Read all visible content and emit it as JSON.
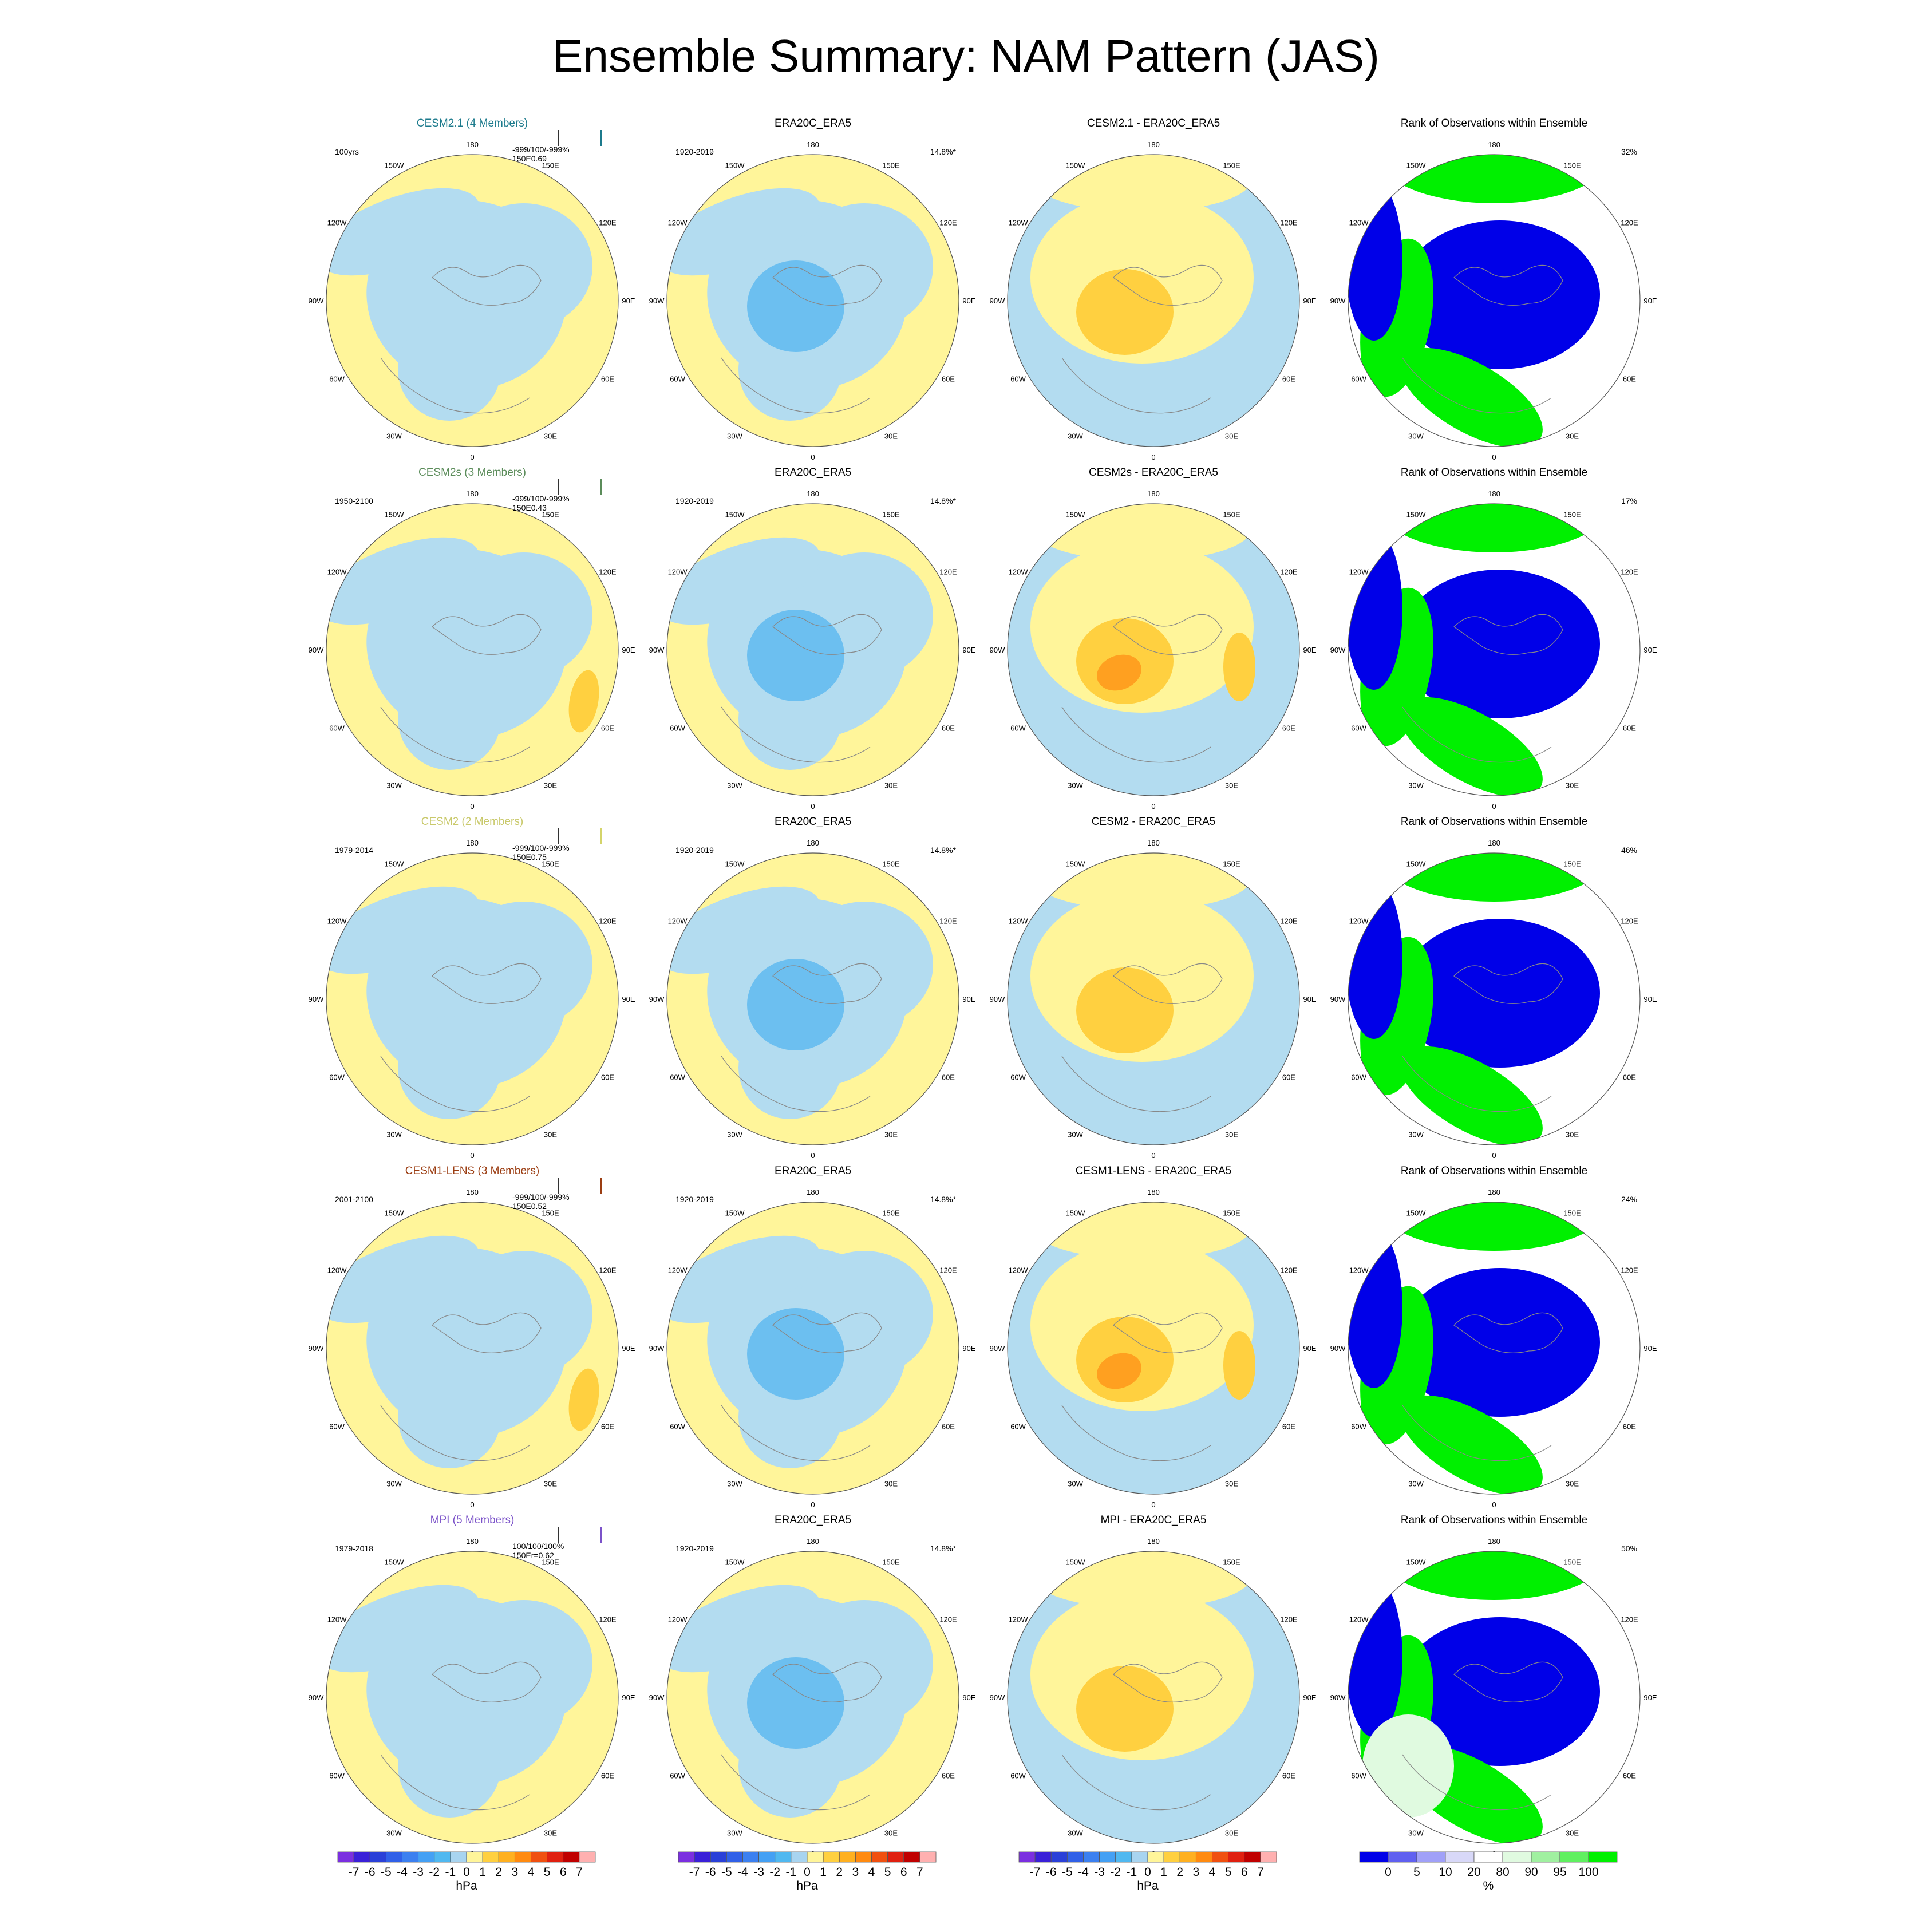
{
  "title": "Ensemble Summary: NAM Pattern (JAS)",
  "longitude_labels": [
    "180",
    "150E",
    "120E",
    "90E",
    "60E",
    "30E",
    "0",
    "30W",
    "60W",
    "90W",
    "120W",
    "150W"
  ],
  "rows": [
    {
      "model": {
        "title": "CESM2.1 (4 Members)",
        "title_color": "#1c7a8c",
        "period": "100yrs",
        "stats_line1": "-999/100/-999%",
        "stats_line2": "150E0.69",
        "marker_color": "#1c7a8c"
      },
      "obs": {
        "title": "ERA20C_ERA5",
        "period": "1920-2019",
        "variance": "14.8%*"
      },
      "diff": {
        "title": "CESM2.1 - ERA20C_ERA5"
      },
      "rank": {
        "title": "Rank of Observations within Ensemble",
        "percent": "32%"
      }
    },
    {
      "model": {
        "title": "CESM2s (3 Members)",
        "title_color": "#5b8c5a",
        "period": "1950-2100",
        "stats_line1": "-999/100/-999%",
        "stats_line2": "150E0.43",
        "marker_color": "#5b8c5a"
      },
      "obs": {
        "title": "ERA20C_ERA5",
        "period": "1920-2019",
        "variance": "14.8%*"
      },
      "diff": {
        "title": "CESM2s - ERA20C_ERA5"
      },
      "rank": {
        "title": "Rank of Observations within Ensemble",
        "percent": "17%"
      }
    },
    {
      "model": {
        "title": "CESM2 (2 Members)",
        "title_color": "#c9c96b",
        "period": "1979-2014",
        "stats_line1": "-999/100/-999%",
        "stats_line2": "150E0.75",
        "marker_color": "#d4d46a"
      },
      "obs": {
        "title": "ERA20C_ERA5",
        "period": "1920-2019",
        "variance": "14.8%*"
      },
      "diff": {
        "title": "CESM2 - ERA20C_ERA5"
      },
      "rank": {
        "title": "Rank of Observations within Ensemble",
        "percent": "46%"
      }
    },
    {
      "model": {
        "title": "CESM1-LENS (3 Members)",
        "title_color": "#9b3d12",
        "period": "2001-2100",
        "stats_line1": "-999/100/-999%",
        "stats_line2": "150E0.52",
        "marker_color": "#9b3d12"
      },
      "obs": {
        "title": "ERA20C_ERA5",
        "period": "1920-2019",
        "variance": "14.8%*"
      },
      "diff": {
        "title": "CESM1-LENS - ERA20C_ERA5"
      },
      "rank": {
        "title": "Rank of Observations within Ensemble",
        "percent": "24%"
      }
    },
    {
      "model": {
        "title": "MPI (5 Members)",
        "title_color": "#7b52c9",
        "period": "1979-2018",
        "stats_line1": "100/100/100%",
        "stats_line2": "150Er=0.62",
        "marker_color": "#7b52c9"
      },
      "obs": {
        "title": "ERA20C_ERA5",
        "period": "1920-2019",
        "variance": "14.8%*"
      },
      "diff": {
        "title": "MPI - ERA20C_ERA5"
      },
      "rank": {
        "title": "Rank of Observations within Ensemble",
        "percent": "50%"
      }
    }
  ],
  "colorbar_hpa": {
    "labels": [
      "-7",
      "-6",
      "-5",
      "-4",
      "-3",
      "-2",
      "-1",
      "0",
      "1",
      "2",
      "3",
      "4",
      "5",
      "6",
      "7"
    ],
    "units": "hPa",
    "colors": [
      "#7b2fe0",
      "#3a20d8",
      "#2a40d8",
      "#3060e8",
      "#3c80f0",
      "#44a0f4",
      "#50b8f0",
      "#a8d4f0",
      "#fff59a",
      "#ffd040",
      "#ffb020",
      "#ff8a10",
      "#f05010",
      "#e02010",
      "#c00000",
      "#ffb0b0"
    ]
  },
  "colorbar_pct": {
    "labels": [
      "0",
      "5",
      "10",
      "20",
      "80",
      "90",
      "95",
      "100"
    ],
    "units": "%",
    "colors": [
      "#0000e8",
      "#6060f0",
      "#a0a0f8",
      "#d8d8f8",
      "#ffffff",
      "#e0fae0",
      "#a0f0a0",
      "#60f060",
      "#00f000"
    ]
  }
}
